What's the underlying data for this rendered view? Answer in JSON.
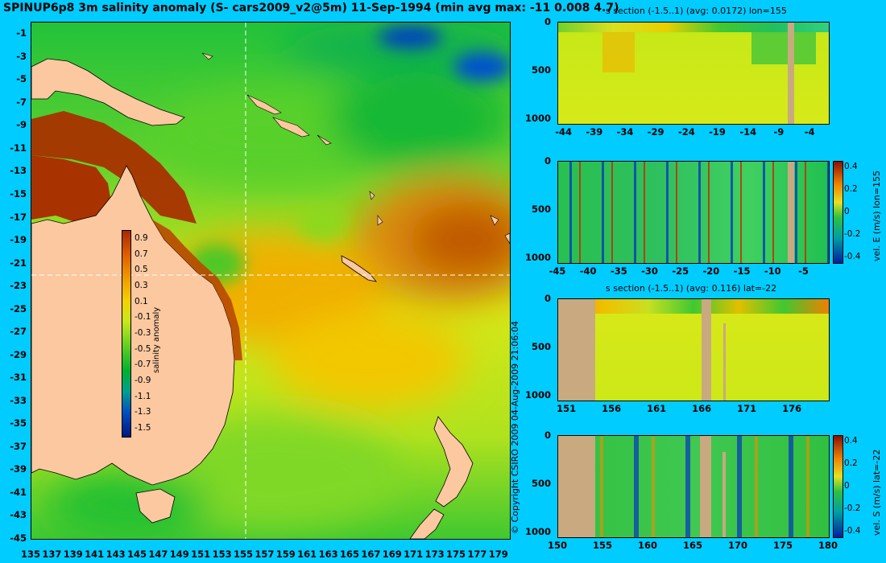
{
  "title": "SPINUP6p8 3m salinity anomaly (S- cars2009_v2@5m) 11-Sep-1994 (min avg max: -11 0.008 4.7)",
  "copyright": "© Copyright CSIRO 2009  04-Aug-2009 21:06:04",
  "map": {
    "lat_ticks": [
      "-1",
      "-3",
      "-5",
      "-7",
      "-9",
      "-11",
      "-13",
      "-15",
      "-17",
      "-19",
      "-21",
      "-23",
      "-25",
      "-27",
      "-29",
      "-31",
      "-33",
      "-35",
      "-37",
      "-39",
      "-41",
      "-43",
      "-45"
    ],
    "lon_ticks": [
      "135",
      "137",
      "139",
      "141",
      "143",
      "145",
      "147",
      "149",
      "151",
      "153",
      "155",
      "157",
      "159",
      "161",
      "163",
      "165",
      "167",
      "169",
      "171",
      "173",
      "175",
      "177",
      "179"
    ],
    "colorbar": {
      "label": "salinity anomaly",
      "ticks": [
        "0.9",
        "0.7",
        "0.5",
        "0.3",
        "0.1",
        "-0.1",
        "-0.3",
        "-0.5",
        "-0.7",
        "-0.9",
        "-1.1",
        "-1.3",
        "-1.5"
      ]
    },
    "colors": {
      "land": "#fbc8a0",
      "high": "#a83200",
      "mid": "#b5e41c",
      "low": "#00b030",
      "verylow": "#0020a0"
    }
  },
  "panels": [
    {
      "title": "s section (-1.5..1) (avg: 0.0172) lon=155",
      "y_ticks": [
        "0",
        "500",
        "1000"
      ],
      "x_ticks": [
        "-44",
        "-39",
        "-34",
        "-29",
        "-24",
        "-19",
        "-14",
        "-9",
        "-4"
      ],
      "colorbar": null
    },
    {
      "title": "",
      "y_ticks": [
        "0",
        "500",
        "1000"
      ],
      "x_ticks": [
        "-45",
        "-40",
        "-35",
        "-30",
        "-25",
        "-20",
        "-15",
        "-10",
        "-5"
      ],
      "colorbar": {
        "label": "vel. E (m/s) lon=155",
        "ticks": [
          "0.4",
          "0.2",
          "0",
          "-0.2",
          "-0.4"
        ]
      }
    },
    {
      "title": "s section (-1.5..1) (avg: 0.116) lat=-22",
      "y_ticks": [
        "0",
        "500",
        "1000"
      ],
      "x_ticks": [
        "151",
        "156",
        "161",
        "166",
        "171",
        "176"
      ],
      "colorbar": null
    },
    {
      "title": "",
      "y_ticks": [
        "0",
        "500",
        "1000"
      ],
      "x_ticks": [
        "150",
        "155",
        "160",
        "165",
        "170",
        "175",
        "180"
      ],
      "colorbar": {
        "label": "vel. S (m/s) lat=-22",
        "ticks": [
          "0.4",
          "0.2",
          "0",
          "-0.2",
          "-0.4"
        ]
      }
    }
  ],
  "chart_data": [
    {
      "type": "heatmap",
      "title": "SPINUP6p8 3m salinity anomaly (S- cars2009_v2@5m) 11-Sep-1994 (min avg max: -11 0.008 4.7)",
      "xlim": [
        135,
        180
      ],
      "ylim": [
        -45,
        0
      ],
      "colorbar_range": [
        -1.5,
        1.0
      ],
      "colorbar_label": "salinity anomaly"
    },
    {
      "type": "heatmap",
      "title": "s section (-1.5..1) (avg: 0.0172) lon=155",
      "xlim": [
        -45,
        -1
      ],
      "ylim": [
        1050,
        0
      ]
    },
    {
      "type": "heatmap",
      "colorbar_label": "vel. E (m/s) lon=155",
      "colorbar_range": [
        -0.4,
        0.4
      ],
      "xlim": [
        -45,
        -1
      ],
      "ylim": [
        1050,
        0
      ]
    },
    {
      "type": "heatmap",
      "title": "s section (-1.5..1) (avg: 0.116) lat=-22",
      "xlim": [
        150,
        180
      ],
      "ylim": [
        1050,
        0
      ]
    },
    {
      "type": "heatmap",
      "colorbar_label": "vel. S (m/s) lat=-22",
      "colorbar_range": [
        -0.4,
        0.4
      ],
      "xlim": [
        150,
        180
      ],
      "ylim": [
        1050,
        0
      ]
    }
  ]
}
